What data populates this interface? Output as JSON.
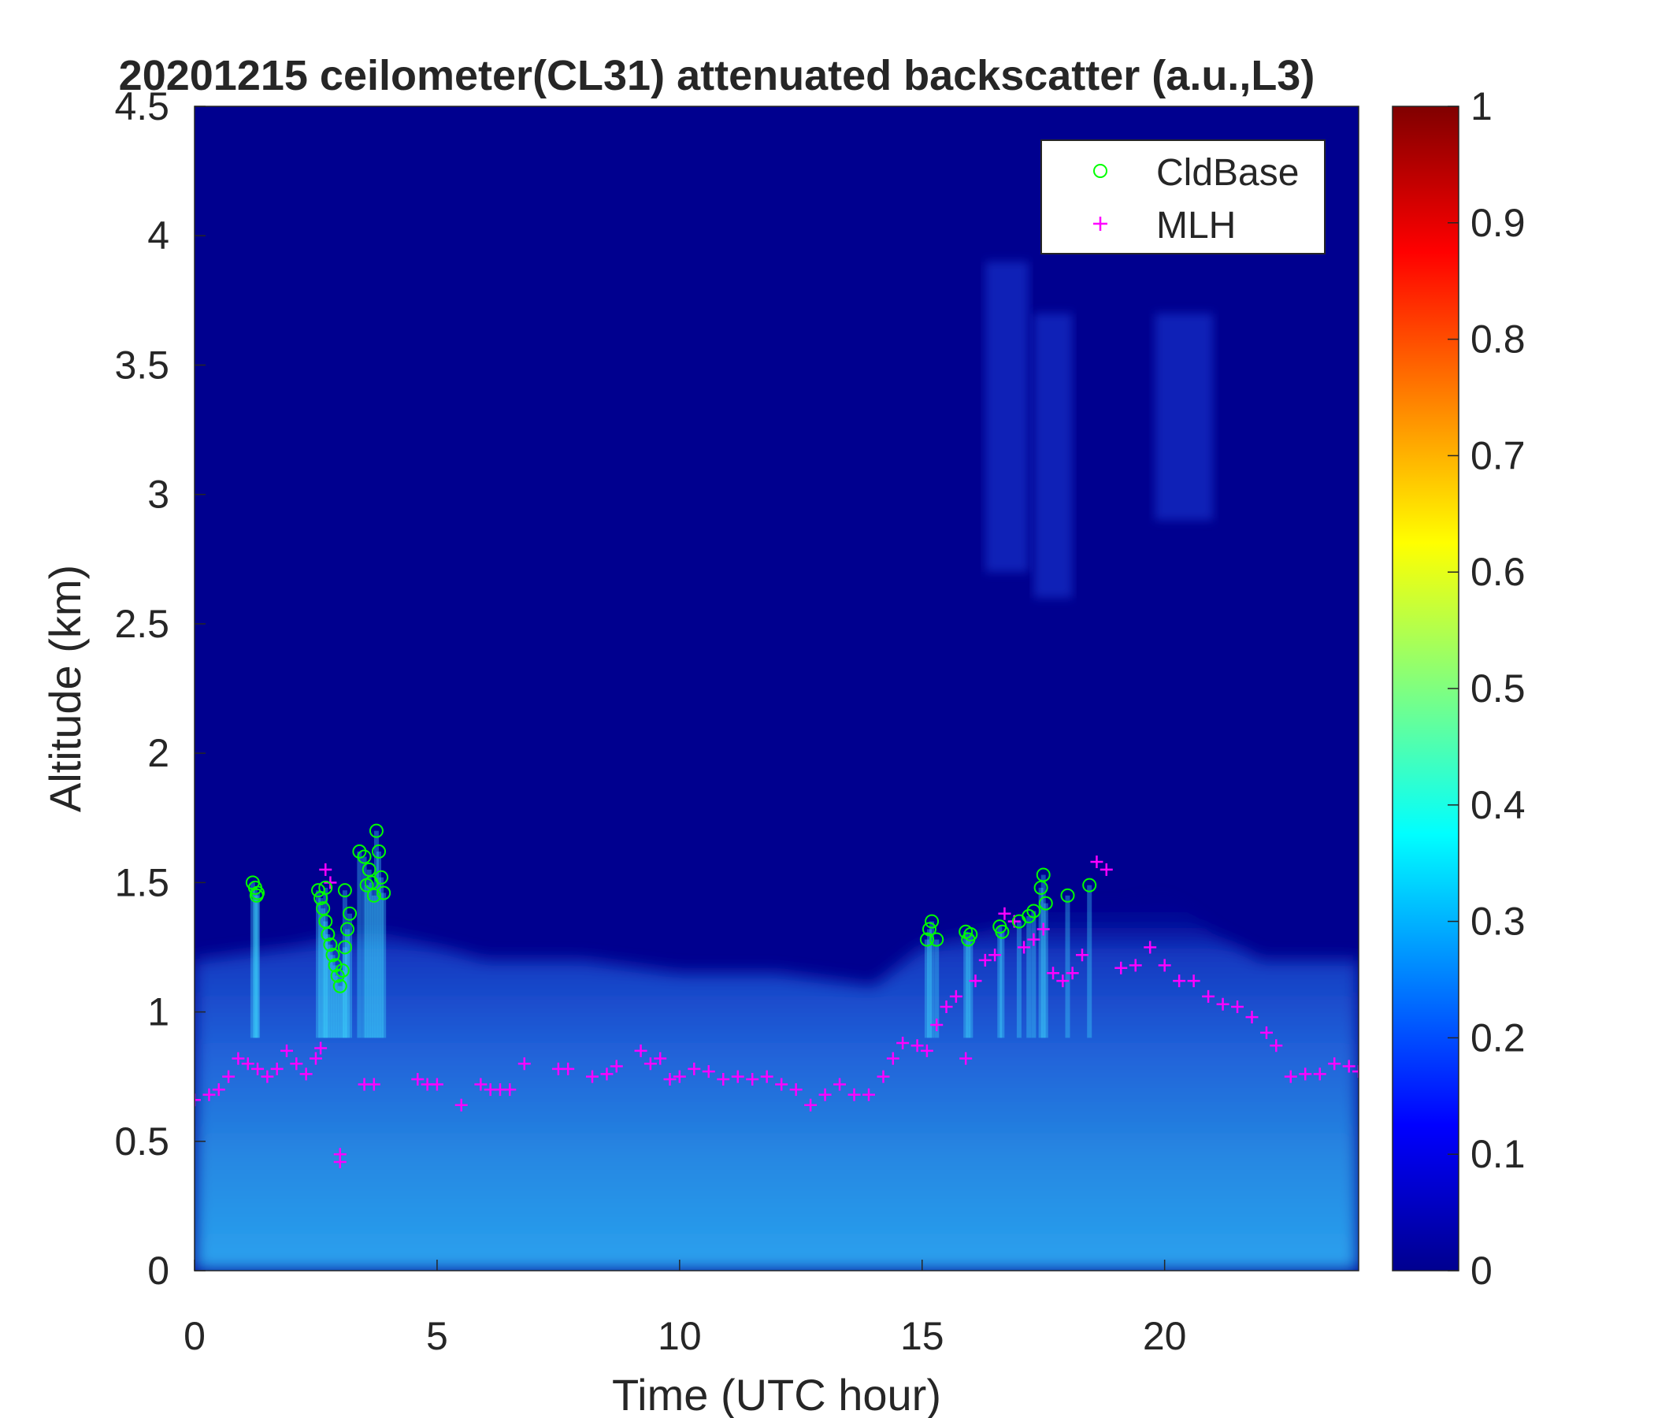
{
  "chart_data": {
    "type": "heatmap",
    "title": "20201215 ceilometer(CL31) attenuated backscatter (a.u.,L3)",
    "xlabel": "Time (UTC hour)",
    "ylabel": "Altitude (km)",
    "xlim": [
      0,
      24
    ],
    "ylim": [
      0,
      4.5
    ],
    "xticks": [
      0,
      5,
      10,
      15,
      20
    ],
    "xtick_labels": [
      "0",
      "5",
      "10",
      "15",
      "20"
    ],
    "yticks": [
      0,
      0.5,
      1,
      1.5,
      2,
      2.5,
      3,
      3.5,
      4,
      4.5
    ],
    "ytick_labels": [
      "0",
      "0.5",
      "1",
      "1.5",
      "2",
      "2.5",
      "3",
      "3.5",
      "4",
      "4.5"
    ],
    "colorbar": {
      "colormap": "jet",
      "range": [
        0,
        1
      ],
      "ticks": [
        0,
        0.1,
        0.2,
        0.3,
        0.4,
        0.5,
        0.6,
        0.7,
        0.8,
        0.9,
        1
      ],
      "tick_labels": [
        "0",
        "0.1",
        "0.2",
        "0.3",
        "0.4",
        "0.5",
        "0.6",
        "0.7",
        "0.8",
        "0.9",
        "1"
      ]
    },
    "legend": {
      "position": "top-right",
      "entries": [
        {
          "label": "CldBase",
          "marker": "circle",
          "color": "#00ff00"
        },
        {
          "label": "MLH",
          "marker": "plus",
          "color": "#ff00ff"
        }
      ]
    },
    "boundary_layer_top": [
      [
        0,
        1.2
      ],
      [
        2,
        1.25
      ],
      [
        3,
        1.3
      ],
      [
        4,
        1.3
      ],
      [
        6,
        1.2
      ],
      [
        8,
        1.2
      ],
      [
        10,
        1.15
      ],
      [
        12,
        1.15
      ],
      [
        14,
        1.1
      ],
      [
        15,
        1.25
      ],
      [
        16,
        1.3
      ],
      [
        18,
        1.4
      ],
      [
        19,
        1.4
      ],
      [
        20,
        1.45
      ],
      [
        21,
        1.3
      ],
      [
        22,
        1.2
      ],
      [
        24,
        1.2
      ]
    ],
    "aloft_features": [
      {
        "time_range": [
          16.3,
          17.2
        ],
        "alt_range": [
          2.7,
          3.9
        ]
      },
      {
        "time_range": [
          17.3,
          18.1
        ],
        "alt_range": [
          2.6,
          3.7
        ]
      },
      {
        "time_range": [
          19.8,
          21.0
        ],
        "alt_range": [
          2.9,
          3.7
        ]
      }
    ],
    "series": [
      {
        "name": "CldBase",
        "points": [
          [
            1.2,
            1.5
          ],
          [
            1.25,
            1.48
          ],
          [
            1.3,
            1.46
          ],
          [
            1.28,
            1.45
          ],
          [
            2.55,
            1.47
          ],
          [
            2.6,
            1.44
          ],
          [
            2.65,
            1.4
          ],
          [
            2.7,
            1.35
          ],
          [
            2.75,
            1.3
          ],
          [
            2.8,
            1.26
          ],
          [
            2.85,
            1.22
          ],
          [
            2.9,
            1.18
          ],
          [
            2.95,
            1.14
          ],
          [
            3.0,
            1.1
          ],
          [
            3.05,
            1.16
          ],
          [
            3.1,
            1.25
          ],
          [
            3.15,
            1.32
          ],
          [
            3.2,
            1.38
          ],
          [
            3.1,
            1.47
          ],
          [
            2.7,
            1.48
          ],
          [
            3.4,
            1.62
          ],
          [
            3.5,
            1.6
          ],
          [
            3.6,
            1.55
          ],
          [
            3.65,
            1.5
          ],
          [
            3.7,
            1.45
          ],
          [
            3.75,
            1.7
          ],
          [
            3.8,
            1.62
          ],
          [
            3.85,
            1.52
          ],
          [
            3.9,
            1.46
          ],
          [
            3.55,
            1.49
          ],
          [
            15.1,
            1.28
          ],
          [
            15.15,
            1.32
          ],
          [
            15.2,
            1.35
          ],
          [
            15.3,
            1.28
          ],
          [
            15.9,
            1.31
          ],
          [
            15.95,
            1.28
          ],
          [
            16.0,
            1.3
          ],
          [
            16.6,
            1.33
          ],
          [
            16.65,
            1.31
          ],
          [
            17.0,
            1.35
          ],
          [
            17.2,
            1.37
          ],
          [
            17.3,
            1.39
          ],
          [
            17.45,
            1.48
          ],
          [
            17.5,
            1.53
          ],
          [
            17.55,
            1.42
          ],
          [
            18.0,
            1.45
          ],
          [
            18.45,
            1.49
          ]
        ]
      },
      {
        "name": "MLH",
        "points": [
          [
            0.0,
            0.66
          ],
          [
            0.3,
            0.68
          ],
          [
            0.5,
            0.7
          ],
          [
            0.7,
            0.75
          ],
          [
            0.9,
            0.82
          ],
          [
            1.1,
            0.8
          ],
          [
            1.3,
            0.78
          ],
          [
            1.5,
            0.75
          ],
          [
            1.7,
            0.78
          ],
          [
            1.9,
            0.85
          ],
          [
            2.1,
            0.8
          ],
          [
            2.3,
            0.76
          ],
          [
            2.5,
            0.82
          ],
          [
            2.6,
            0.86
          ],
          [
            2.7,
            1.55
          ],
          [
            2.8,
            1.5
          ],
          [
            3.0,
            0.45
          ],
          [
            3.0,
            0.42
          ],
          [
            3.5,
            0.72
          ],
          [
            3.7,
            0.72
          ],
          [
            4.6,
            0.74
          ],
          [
            4.8,
            0.72
          ],
          [
            5.0,
            0.72
          ],
          [
            5.5,
            0.64
          ],
          [
            5.9,
            0.72
          ],
          [
            6.1,
            0.7
          ],
          [
            6.3,
            0.7
          ],
          [
            6.5,
            0.7
          ],
          [
            6.8,
            0.8
          ],
          [
            7.5,
            0.78
          ],
          [
            7.7,
            0.78
          ],
          [
            8.2,
            0.75
          ],
          [
            8.5,
            0.76
          ],
          [
            8.7,
            0.79
          ],
          [
            9.2,
            0.85
          ],
          [
            9.4,
            0.8
          ],
          [
            9.6,
            0.82
          ],
          [
            9.8,
            0.74
          ],
          [
            10.0,
            0.75
          ],
          [
            10.3,
            0.78
          ],
          [
            10.6,
            0.77
          ],
          [
            10.9,
            0.74
          ],
          [
            11.2,
            0.75
          ],
          [
            11.5,
            0.74
          ],
          [
            11.8,
            0.75
          ],
          [
            12.1,
            0.72
          ],
          [
            12.4,
            0.7
          ],
          [
            12.7,
            0.64
          ],
          [
            13.0,
            0.68
          ],
          [
            13.3,
            0.72
          ],
          [
            13.6,
            0.68
          ],
          [
            13.9,
            0.68
          ],
          [
            14.2,
            0.75
          ],
          [
            14.4,
            0.82
          ],
          [
            14.6,
            0.88
          ],
          [
            14.9,
            0.87
          ],
          [
            15.1,
            0.85
          ],
          [
            15.3,
            0.95
          ],
          [
            15.5,
            1.02
          ],
          [
            15.7,
            1.06
          ],
          [
            15.9,
            0.82
          ],
          [
            16.1,
            1.12
          ],
          [
            16.3,
            1.2
          ],
          [
            16.5,
            1.22
          ],
          [
            16.7,
            1.38
          ],
          [
            16.9,
            1.35
          ],
          [
            17.1,
            1.25
          ],
          [
            17.3,
            1.28
          ],
          [
            17.5,
            1.32
          ],
          [
            17.7,
            1.15
          ],
          [
            17.9,
            1.12
          ],
          [
            18.1,
            1.15
          ],
          [
            18.3,
            1.22
          ],
          [
            18.6,
            1.58
          ],
          [
            18.8,
            1.55
          ],
          [
            19.1,
            1.17
          ],
          [
            19.4,
            1.18
          ],
          [
            19.7,
            1.25
          ],
          [
            20.0,
            1.18
          ],
          [
            20.3,
            1.12
          ],
          [
            20.6,
            1.12
          ],
          [
            20.9,
            1.06
          ],
          [
            21.2,
            1.03
          ],
          [
            21.5,
            1.02
          ],
          [
            21.8,
            0.98
          ],
          [
            22.1,
            0.92
          ],
          [
            22.3,
            0.87
          ],
          [
            22.6,
            0.75
          ],
          [
            22.9,
            0.76
          ],
          [
            23.2,
            0.76
          ],
          [
            23.5,
            0.8
          ],
          [
            23.8,
            0.79
          ],
          [
            24.0,
            0.77
          ]
        ]
      }
    ]
  }
}
